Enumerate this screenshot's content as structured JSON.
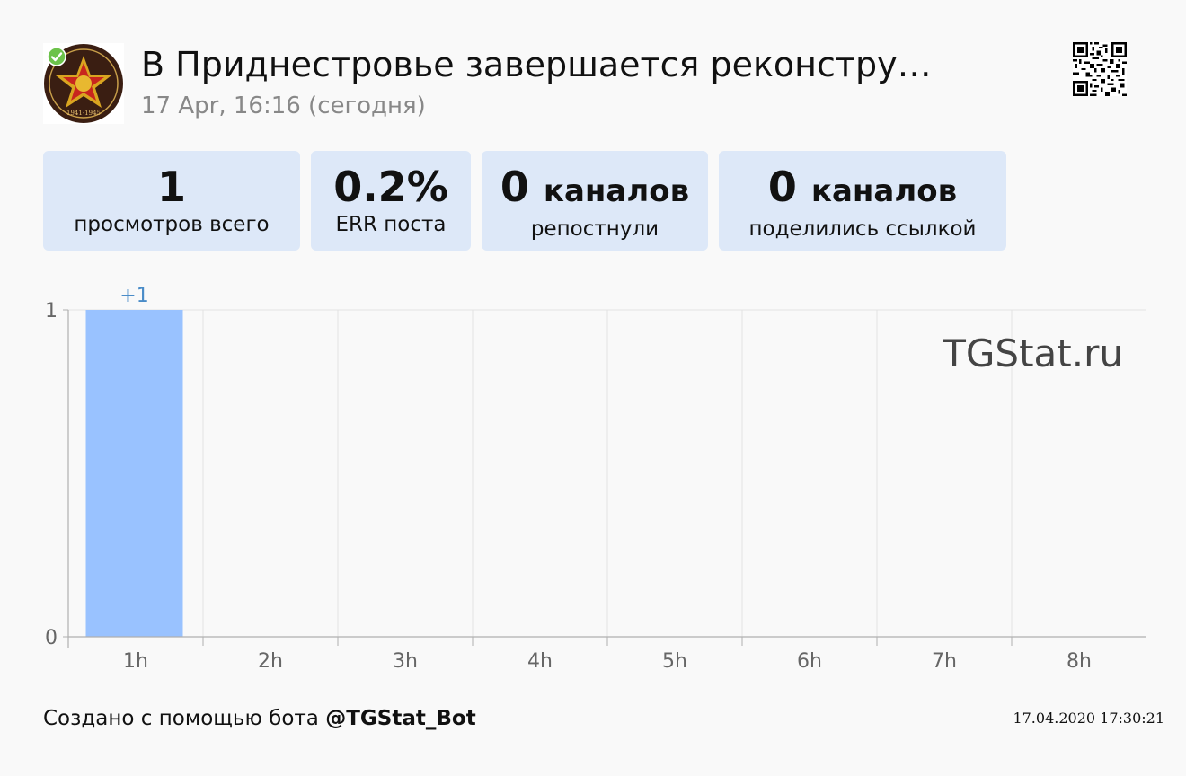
{
  "post": {
    "title": "В Приднестровье завершается реконстру…",
    "date": "17 Apr, 16:16 (сегодня)"
  },
  "stats": [
    {
      "value": "1",
      "unit": "",
      "label": "просмотров всего"
    },
    {
      "value": "0.2%",
      "unit": "",
      "label": "ERR поста"
    },
    {
      "value": "0",
      "unit": "каналов",
      "label": "репостнули"
    },
    {
      "value": "0",
      "unit": "каналов",
      "label": "поделились ссылкой"
    }
  ],
  "chart_data": {
    "type": "bar",
    "categories": [
      "1h",
      "2h",
      "3h",
      "4h",
      "5h",
      "6h",
      "7h",
      "8h"
    ],
    "values": [
      1,
      0,
      0,
      0,
      0,
      0,
      0,
      0
    ],
    "data_labels": [
      "+1",
      "",
      "",
      "",
      "",
      "",
      "",
      ""
    ],
    "ylim": [
      0,
      1
    ],
    "yticks": [
      "0",
      "1"
    ],
    "watermark": "TGStat.ru",
    "grid": true,
    "bar_color": "#99c2ff",
    "label_color": "#4a8cc8"
  },
  "footer": {
    "prefix": "Создано с помощью бота ",
    "bot": "@TGStat_Bot",
    "timestamp": "17.04.2020 17:30:21"
  },
  "colors": {
    "card_bg": "#dde8f8",
    "verified": "#6cc24a",
    "avatar_bg": "#3a1e12"
  }
}
